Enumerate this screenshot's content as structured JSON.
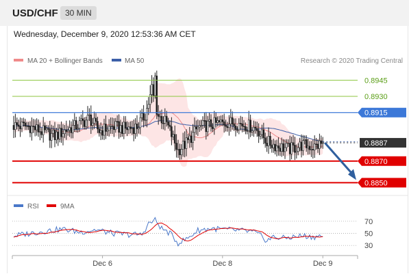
{
  "header": {
    "symbol": "USD/CHF",
    "interval": "30 MIN"
  },
  "datetime": "Wednesday, December 9, 2020 12:53:36 AM CET",
  "legend": {
    "ma20": "MA 20 + Bollinger Bands",
    "ma50": "MA 50"
  },
  "credit": "Research © 2020 Trading Central",
  "rsi_legend": {
    "rsi": "RSI",
    "ma": "9MA"
  },
  "colors": {
    "ma20": "#f08a8a",
    "ma50": "#3c5fa8",
    "band": "#fde2e2",
    "resistance": "#8cc63f",
    "support": "#e00000",
    "level_blue": "#3c78d8",
    "current": "#333333",
    "arrow": "#2f5f9e",
    "rsi": "#4a78c9",
    "rsi_ma": "#e00000"
  },
  "chart_data": [
    {
      "type": "candlestick",
      "title": "USD/CHF",
      "ylim": [
        0.8842,
        0.8956
      ],
      "x_ticks": [
        "Dec 6",
        "Dec 8",
        "Dec 9"
      ],
      "levels": [
        {
          "value": 0.8945,
          "label": "0.8945",
          "kind": "resistance"
        },
        {
          "value": 0.893,
          "label": "0.8930",
          "kind": "resistance"
        },
        {
          "value": 0.8915,
          "label": "0.8915",
          "kind": "level_blue"
        },
        {
          "value": 0.8887,
          "label": "0.8887",
          "kind": "current"
        },
        {
          "value": 0.887,
          "label": "0.8870",
          "kind": "support"
        },
        {
          "value": 0.885,
          "label": "0.8850",
          "kind": "support"
        }
      ],
      "close_anchors": [
        [
          0,
          0.8903
        ],
        [
          10,
          0.8902
        ],
        [
          18,
          0.8897
        ],
        [
          25,
          0.8893
        ],
        [
          32,
          0.8899
        ],
        [
          40,
          0.8904
        ],
        [
          46,
          0.891
        ],
        [
          52,
          0.8898
        ],
        [
          60,
          0.8902
        ],
        [
          68,
          0.89
        ],
        [
          75,
          0.8902
        ],
        [
          80,
          0.8913
        ],
        [
          84,
          0.8935
        ],
        [
          88,
          0.8912
        ],
        [
          93,
          0.8905
        ],
        [
          100,
          0.888
        ],
        [
          106,
          0.8888
        ],
        [
          112,
          0.8901
        ],
        [
          120,
          0.8904
        ],
        [
          130,
          0.8906
        ],
        [
          140,
          0.8904
        ],
        [
          148,
          0.89
        ],
        [
          154,
          0.8888
        ],
        [
          160,
          0.8884
        ],
        [
          168,
          0.8881
        ],
        [
          176,
          0.8885
        ],
        [
          183,
          0.8883
        ],
        [
          188,
          0.8887
        ]
      ],
      "forecast_target": 0.885
    },
    {
      "type": "line",
      "title": "RSI",
      "ylim": [
        20,
        80
      ],
      "y_ticks": [
        70,
        50,
        30
      ],
      "series_names": [
        "RSI",
        "9MA"
      ],
      "rsi_anchors": [
        [
          0,
          46
        ],
        [
          10,
          50
        ],
        [
          20,
          54
        ],
        [
          30,
          57
        ],
        [
          40,
          52
        ],
        [
          50,
          56
        ],
        [
          60,
          50
        ],
        [
          70,
          48
        ],
        [
          78,
          48
        ],
        [
          82,
          66
        ],
        [
          86,
          72
        ],
        [
          90,
          58
        ],
        [
          95,
          50
        ],
        [
          100,
          34
        ],
        [
          106,
          42
        ],
        [
          112,
          55
        ],
        [
          120,
          58
        ],
        [
          130,
          56
        ],
        [
          140,
          54
        ],
        [
          146,
          52
        ],
        [
          150,
          46
        ],
        [
          154,
          38
        ],
        [
          158,
          44
        ],
        [
          164,
          42
        ],
        [
          170,
          44
        ],
        [
          176,
          46
        ],
        [
          182,
          44
        ],
        [
          188,
          46
        ]
      ]
    }
  ]
}
